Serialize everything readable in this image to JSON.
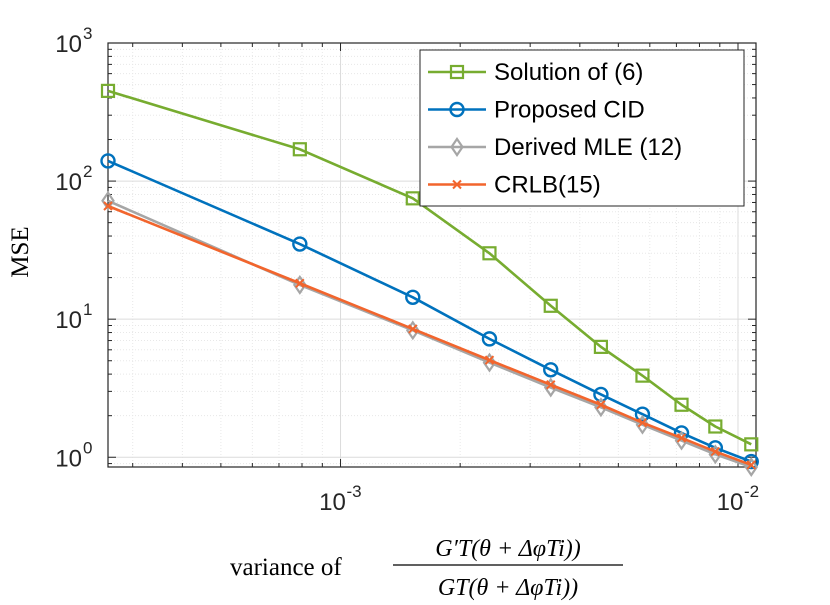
{
  "chart_data": {
    "type": "line",
    "xscale": "log",
    "yscale": "log",
    "xlim": [
      0.00026,
      0.0111
    ],
    "ylim": [
      0.85,
      1000
    ],
    "grid": true,
    "minor_grid": true,
    "title": "",
    "ylabel": "MSE",
    "xlabel_prefix": "variance of",
    "xlabel_numerator": "G′T(θ + ΔφTi))",
    "xlabel_denominator": "GT(θ + ΔφTi))",
    "x_ticks": [
      {
        "value": 0.001,
        "base": "10",
        "exp": "-3"
      },
      {
        "value": 0.01,
        "base": "10",
        "exp": "-2"
      }
    ],
    "y_ticks": [
      {
        "value": 1,
        "base": "10",
        "exp": "0"
      },
      {
        "value": 10,
        "base": "10",
        "exp": "1"
      },
      {
        "value": 100,
        "base": "10",
        "exp": "2"
      },
      {
        "value": 1000,
        "base": "10",
        "exp": "3"
      }
    ],
    "legend_position": "top-right",
    "series": [
      {
        "name": "Solution of (6)",
        "color": "#77ac30",
        "marker": "square",
        "x": [
          0.00026,
          0.00079,
          0.00152,
          0.00237,
          0.00338,
          0.00452,
          0.00575,
          0.00721,
          0.00877,
          0.0108
        ],
        "y": [
          450,
          170,
          75,
          30,
          12.5,
          6.3,
          3.9,
          2.4,
          1.67,
          1.24
        ]
      },
      {
        "name": "Proposed CID",
        "color": "#0072bd",
        "marker": "circle",
        "x": [
          0.00026,
          0.00079,
          0.00152,
          0.00237,
          0.00338,
          0.00452,
          0.00575,
          0.00721,
          0.00877,
          0.0108
        ],
        "y": [
          140,
          35,
          14.4,
          7.2,
          4.3,
          2.85,
          2.05,
          1.5,
          1.17,
          0.93
        ]
      },
      {
        "name": "Derived MLE (12)",
        "color": "#a6a6a6",
        "marker": "diamond",
        "x": [
          0.00026,
          0.00079,
          0.00152,
          0.00237,
          0.00338,
          0.00452,
          0.00575,
          0.00721,
          0.00877,
          0.0108
        ],
        "y": [
          72,
          17.7,
          8.3,
          4.85,
          3.2,
          2.3,
          1.72,
          1.32,
          1.05,
          0.85
        ]
      },
      {
        "name": "CRLB(15)",
        "color": "#f2652d",
        "marker": "x",
        "x": [
          0.00026,
          0.00079,
          0.00152,
          0.00237,
          0.00338,
          0.00452,
          0.00575,
          0.00721,
          0.00877,
          0.0108
        ],
        "y": [
          66,
          18.2,
          8.5,
          5.05,
          3.35,
          2.4,
          1.78,
          1.38,
          1.1,
          0.88
        ]
      }
    ]
  }
}
